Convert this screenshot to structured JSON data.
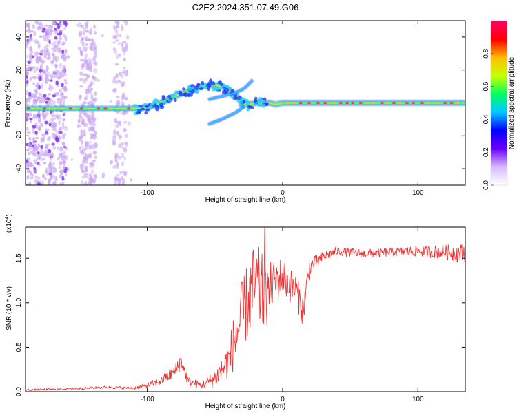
{
  "title": "C2E2.2024.351.07.49.G06",
  "chart_data": [
    {
      "type": "heatmap",
      "name": "spectrogram",
      "xlabel": "Height of straight line (km)",
      "ylabel": "Frequency (Hz)",
      "xlim": [
        -190,
        135
      ],
      "ylim": [
        -50,
        50
      ],
      "x_ticks": [
        -100,
        0,
        100
      ],
      "x_tick_labels": [
        "-100",
        "0",
        "100"
      ],
      "y_ticks": [
        -40,
        -20,
        0,
        20,
        40
      ],
      "y_tick_labels": [
        "-40",
        "-20",
        "0",
        "20",
        "40"
      ],
      "ridge": {
        "x": [
          -190,
          -150,
          -110,
          -100,
          -90,
          -80,
          -70,
          -60,
          -50,
          -45,
          -40,
          -35,
          -30,
          -25,
          -20,
          -15,
          -10,
          -5,
          0,
          10,
          20,
          60,
          100,
          135
        ],
        "y": [
          -3.5,
          -3.5,
          -3.5,
          -3,
          0,
          4,
          7,
          10,
          11,
          10,
          8,
          5,
          0,
          -1,
          0,
          0,
          0,
          -1,
          0,
          0,
          0,
          0,
          0,
          0
        ]
      },
      "branches": [
        {
          "x": [
            -55,
            -45,
            -35,
            -28,
            -22
          ],
          "y": [
            2,
            4,
            6,
            9,
            14
          ]
        },
        {
          "x": [
            -55,
            -45,
            -35,
            -28
          ],
          "y": [
            -13,
            -10,
            -6,
            -2
          ]
        }
      ],
      "colorbar": {
        "label": "Normalized spectral amplitude",
        "range": [
          0,
          1
        ],
        "ticks": [
          0.0,
          0.2,
          0.4,
          0.6,
          0.8
        ],
        "tick_labels": [
          "0.0",
          "0.2",
          "0.4",
          "0.6",
          "0.8"
        ],
        "colors": [
          "#ffffff",
          "#d8b8ff",
          "#6a00ff",
          "#0000ff",
          "#00c8ff",
          "#00ff60",
          "#c8ff00",
          "#ffc000",
          "#ff0000",
          "#ff0060"
        ]
      },
      "colors": {
        "weak": "#c9a8f2",
        "core": "#3b1bd6",
        "glow": "#18e6c8",
        "peak": "#ff2a2a"
      }
    },
    {
      "type": "line",
      "name": "snr",
      "xlabel": "Height of straight line (km)",
      "ylabel": "SNR (10 * v/v)",
      "scale_label": "(x10",
      "scale_exponent": "4",
      "xlim": [
        -190,
        135
      ],
      "ylim": [
        0,
        1.85
      ],
      "x_ticks": [
        -100,
        0,
        100
      ],
      "x_tick_labels": [
        "-100",
        "0",
        "100"
      ],
      "y_ticks": [
        0.0,
        0.5,
        1.0,
        1.5
      ],
      "y_tick_labels": [
        "0.0",
        "0.5",
        "1.0",
        "1.5"
      ],
      "series": [
        {
          "name": "SNR",
          "color": "#ee3333",
          "x": [
            -190,
            -160,
            -130,
            -110,
            -100,
            -90,
            -80,
            -75,
            -70,
            -60,
            -50,
            -40,
            -35,
            -30,
            -25,
            -20,
            -15,
            -12,
            -10,
            -5,
            0,
            5,
            10,
            15,
            20,
            30,
            40,
            60,
            80,
            100,
            120,
            135
          ],
          "y": [
            0.02,
            0.03,
            0.05,
            0.04,
            0.07,
            0.12,
            0.22,
            0.35,
            0.12,
            0.07,
            0.15,
            0.35,
            0.6,
            0.85,
            1.05,
            1.2,
            1.1,
            1.05,
            1.15,
            1.25,
            1.3,
            1.2,
            1.15,
            0.9,
            1.4,
            1.52,
            1.58,
            1.55,
            1.57,
            1.58,
            1.57,
            1.55
          ],
          "noise": [
            0.01,
            0.01,
            0.015,
            0.015,
            0.03,
            0.05,
            0.08,
            0.1,
            0.05,
            0.04,
            0.1,
            0.2,
            0.35,
            0.4,
            0.45,
            0.5,
            0.45,
            0.35,
            0.3,
            0.25,
            0.22,
            0.2,
            0.18,
            0.18,
            0.1,
            0.06,
            0.05,
            0.05,
            0.05,
            0.06,
            0.08,
            0.12
          ]
        }
      ]
    }
  ]
}
